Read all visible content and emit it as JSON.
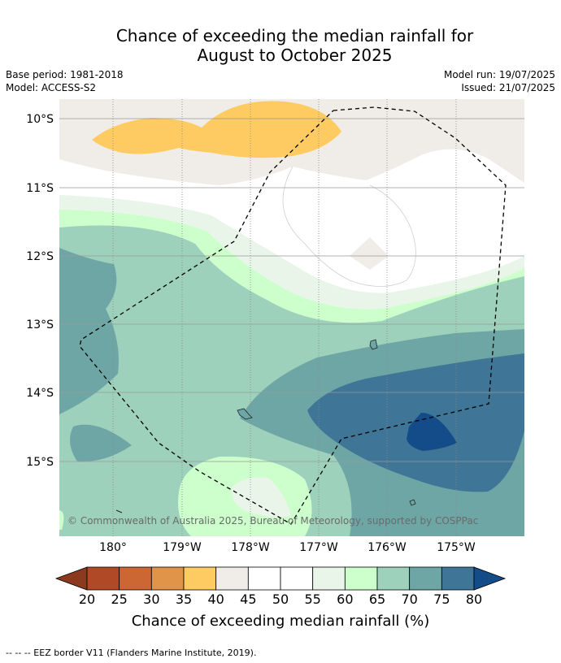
{
  "title_line1": "Chance of exceeding the median rainfall for",
  "title_line2": "August to October 2025",
  "base_period": "Base period: 1981-2018",
  "model": "Model: ACCESS-S2",
  "model_run": "Model run: 19/07/2025",
  "issued": "Issued: 21/07/2025",
  "copyright": "© Commonwealth of Australia 2025, Bureau of Meteorology, supported by COSPPac",
  "lat_labels": [
    "10°S",
    "11°S",
    "12°S",
    "13°S",
    "14°S",
    "15°S"
  ],
  "lon_labels": [
    "180°",
    "179°W",
    "178°W",
    "177°W",
    "176°W",
    "175°W"
  ],
  "colorbar": {
    "ticks": [
      "20",
      "25",
      "30",
      "35",
      "40",
      "45",
      "50",
      "55",
      "60",
      "65",
      "70",
      "75",
      "80"
    ],
    "colors": [
      "#8c3a1f",
      "#b04a26",
      "#cc6633",
      "#e0944a",
      "#fecb62",
      "#f0ede8",
      "#ffffff",
      "#ffffff",
      "#eaf5ea",
      "#ccffcc",
      "#9dd1bb",
      "#6ea6a6",
      "#3f7596",
      "#144c8a"
    ],
    "label": "Chance of exceeding median rainfall (%)"
  },
  "footer": "--  --  -- EEZ border V11 (Flanders Marine Institute, 2019).",
  "palette": {
    "beige": "#f0ede8",
    "orange": "#fecb62",
    "light_green": "#eaf5ea",
    "green": "#ccffcc",
    "teal_light": "#9dd1bb",
    "teal": "#6ea6a6",
    "blue": "#3f7596",
    "dark_blue": "#144c8a"
  }
}
